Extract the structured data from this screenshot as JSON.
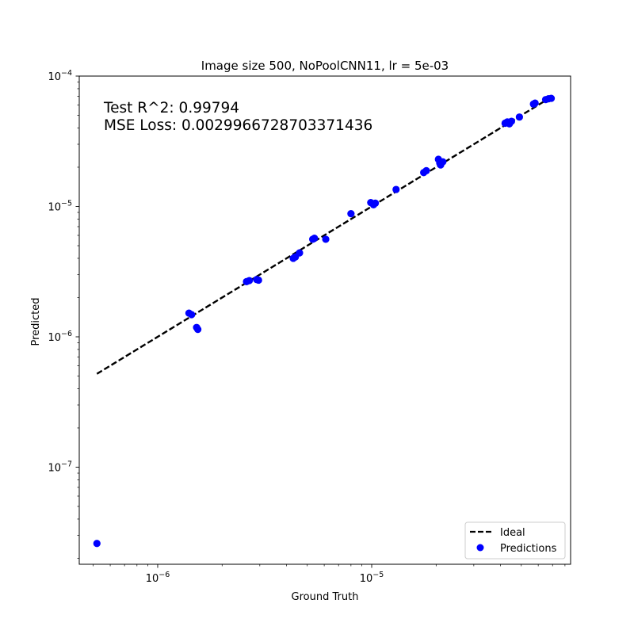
{
  "chart_data": {
    "type": "scatter",
    "title": "Image size 500, NoPoolCNN11, lr = 5e-03",
    "xlabel": "Ground Truth",
    "ylabel": "Predicted",
    "xscale": "log",
    "yscale": "log",
    "xlim": [
      4.3e-07,
      8.5e-05
    ],
    "ylim": [
      1.8e-08,
      0.0001
    ],
    "x_ticks": [
      {
        "value": 1e-06,
        "label_base": "10",
        "label_exp": "−6"
      },
      {
        "value": 1e-05,
        "label_base": "10",
        "label_exp": "−5"
      }
    ],
    "y_ticks": [
      {
        "value": 1e-07,
        "label_base": "10",
        "label_exp": "−7"
      },
      {
        "value": 1e-06,
        "label_base": "10",
        "label_exp": "−6"
      },
      {
        "value": 1e-05,
        "label_base": "10",
        "label_exp": "−5"
      },
      {
        "value": 0.0001,
        "label_base": "10",
        "label_exp": "−4"
      }
    ],
    "annotations": [
      "Test R^2: 0.99794",
      "MSE Loss: 0.0029966728703371436"
    ],
    "legend": {
      "placement": "lower-right",
      "entries": [
        {
          "label": "Ideal",
          "style": "dashed-line",
          "color": "#000000"
        },
        {
          "label": "Predictions",
          "style": "marker",
          "color": "#0000ff"
        }
      ]
    },
    "series": [
      {
        "name": "Ideal",
        "kind": "line",
        "color": "#000000",
        "x": [
          5.2e-07,
          7e-05
        ],
        "y": [
          5.2e-07,
          7e-05
        ]
      },
      {
        "name": "Predictions",
        "kind": "scatter",
        "color": "#0000ff",
        "x": [
          5.2e-07,
          1.4e-06,
          1.44e-06,
          1.52e-06,
          1.54e-06,
          2.6e-06,
          2.68e-06,
          2.9e-06,
          2.96e-06,
          4.3e-06,
          4.4e-06,
          4.6e-06,
          5.3e-06,
          5.4e-06,
          6.1e-06,
          8e-06,
          9.9e-06,
          1.02e-05,
          1.04e-05,
          1.3e-05,
          1.75e-05,
          1.8e-05,
          2.05e-05,
          2.08e-05,
          2.1e-05,
          2.15e-05,
          4.2e-05,
          4.3e-05,
          4.4e-05,
          4.5e-05,
          4.9e-05,
          5.7e-05,
          5.8e-05,
          6.5e-05,
          6.7e-05,
          6.9e-05
        ],
        "y": [
          2.6e-08,
          1.52e-06,
          1.48e-06,
          1.18e-06,
          1.14e-06,
          2.65e-06,
          2.7e-06,
          2.75e-06,
          2.72e-06,
          4e-06,
          4.1e-06,
          4.4e-06,
          5.6e-06,
          5.7e-06,
          5.6e-06,
          8.8e-06,
          1.07e-05,
          1.03e-05,
          1.06e-05,
          1.35e-05,
          1.82e-05,
          1.88e-05,
          2.3e-05,
          2.15e-05,
          2.08e-05,
          2.2e-05,
          4.35e-05,
          4.45e-05,
          4.3e-05,
          4.5e-05,
          4.85e-05,
          6.1e-05,
          6.2e-05,
          6.6e-05,
          6.7e-05,
          6.75e-05
        ]
      }
    ]
  }
}
